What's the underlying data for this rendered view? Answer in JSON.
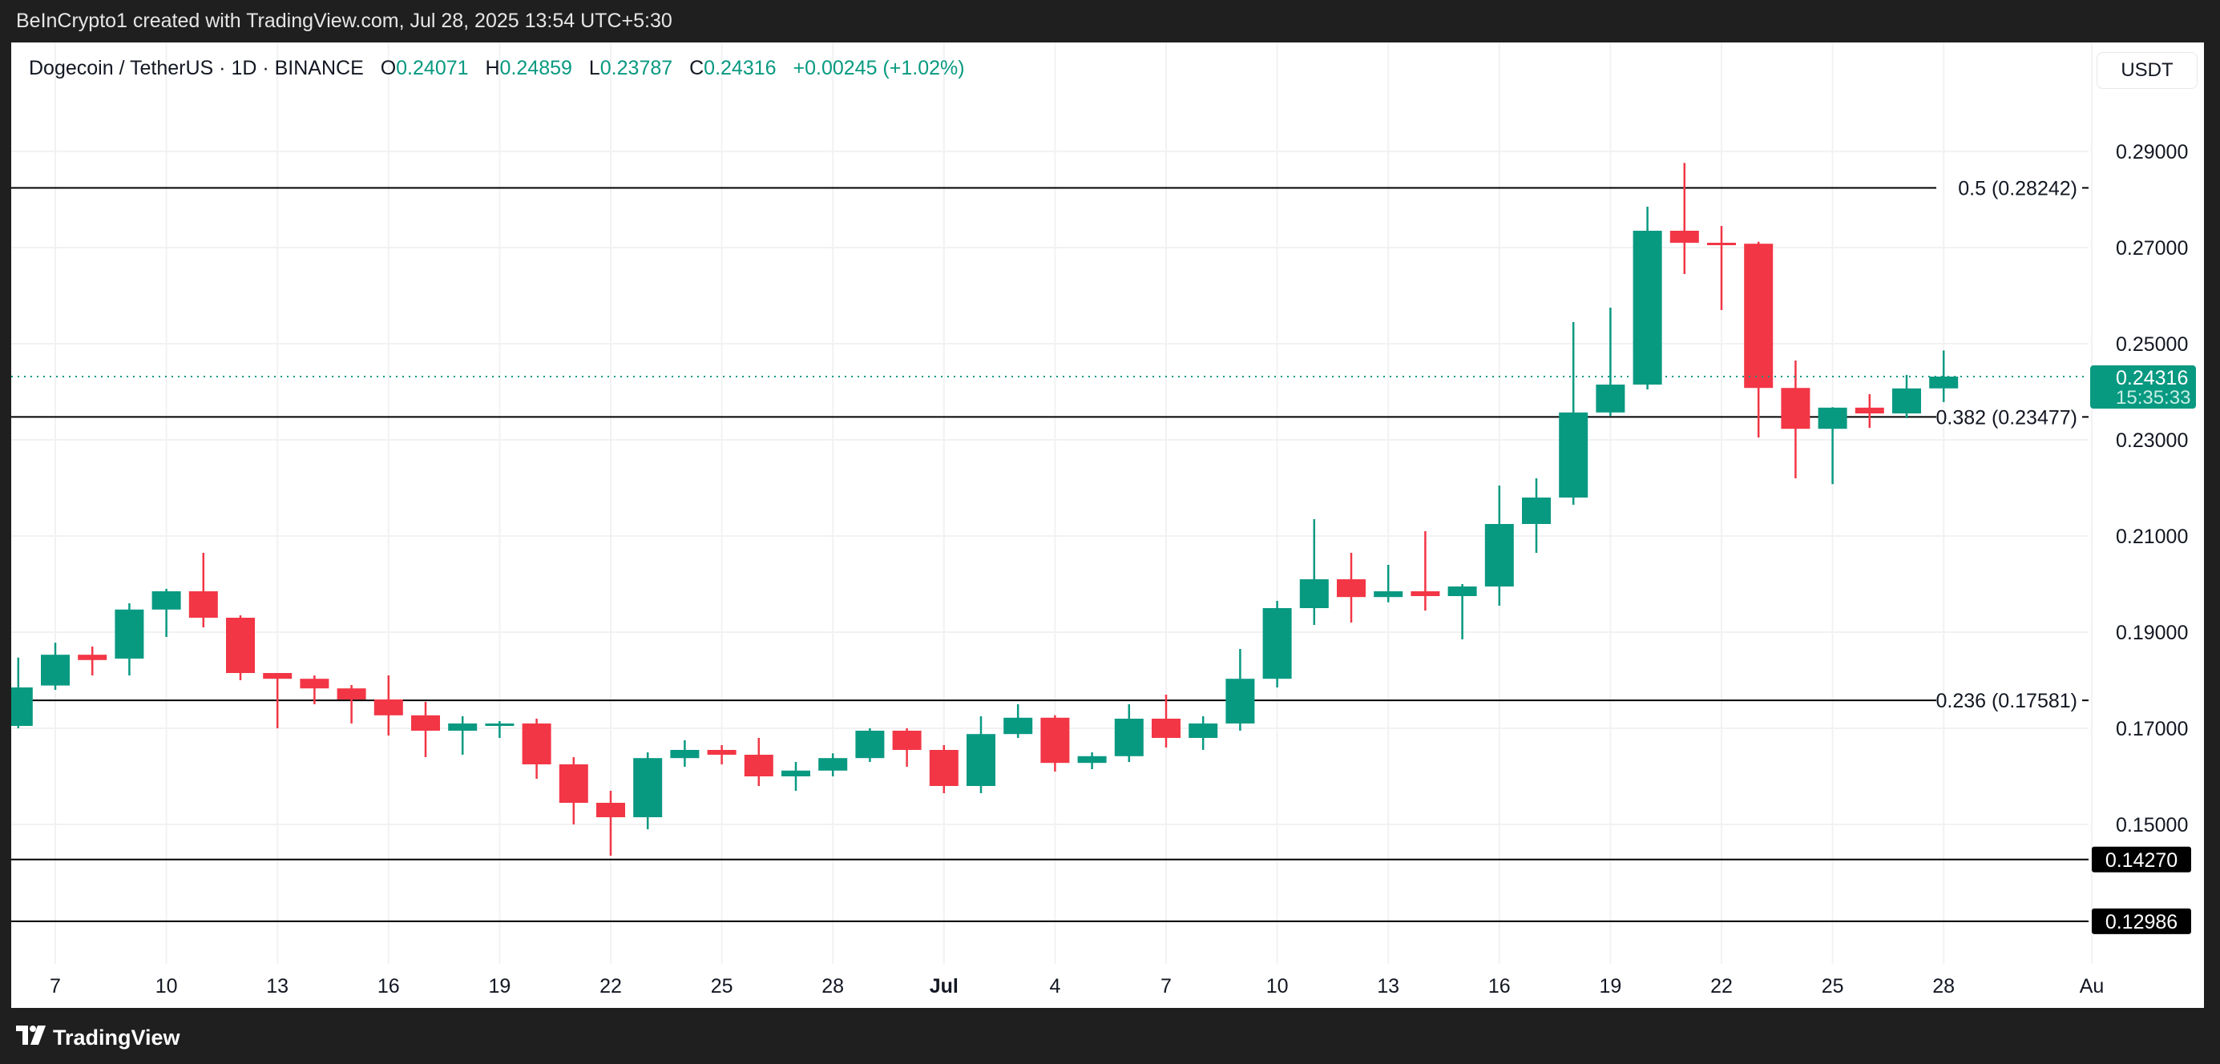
{
  "header": {
    "caption": "BeInCrypto1 created with TradingView.com, Jul 28, 2025 13:54 UTC+5:30"
  },
  "legend": {
    "symbol": "Dogecoin / TetherUS · 1D · BINANCE",
    "o_label": "O",
    "o": "0.24071",
    "h_label": "H",
    "h": "0.24859",
    "l_label": "L",
    "l": "0.23787",
    "c_label": "C",
    "c": "0.24316",
    "change": "+0.00245 (+1.02%)"
  },
  "currency_button": "USDT",
  "footer": {
    "brand": "TradingView"
  },
  "colors": {
    "up": "#089981",
    "down": "#f23645",
    "line": "#000000"
  },
  "chart_data": {
    "type": "candlestick",
    "ylim": [
      0.12,
      0.305
    ],
    "y_ticks": [
      "0.29000",
      "0.27000",
      "0.25000",
      "0.23000",
      "0.21000",
      "0.19000",
      "0.17000",
      "0.15000"
    ],
    "x_ticks": [
      {
        "label": "7",
        "date": "Jun 7"
      },
      {
        "label": "10",
        "date": "Jun 10"
      },
      {
        "label": "13",
        "date": "Jun 13"
      },
      {
        "label": "16",
        "date": "Jun 16"
      },
      {
        "label": "19",
        "date": "Jun 19"
      },
      {
        "label": "22",
        "date": "Jun 22"
      },
      {
        "label": "25",
        "date": "Jun 25"
      },
      {
        "label": "28",
        "date": "Jun 28"
      },
      {
        "label": "Jul",
        "date": "Jul 1"
      },
      {
        "label": "4",
        "date": "Jul 4"
      },
      {
        "label": "7",
        "date": "Jul 7"
      },
      {
        "label": "10",
        "date": "Jul 10"
      },
      {
        "label": "13",
        "date": "Jul 13"
      },
      {
        "label": "16",
        "date": "Jul 16"
      },
      {
        "label": "19",
        "date": "Jul 19"
      },
      {
        "label": "22",
        "date": "Jul 22"
      },
      {
        "label": "25",
        "date": "Jul 25"
      },
      {
        "label": "28",
        "date": "Jul 28"
      },
      {
        "label": "Au",
        "date": "Aug 1"
      }
    ],
    "candles": [
      [
        "Jun 6",
        0.1705,
        0.1847,
        0.17,
        0.1785
      ],
      [
        "Jun 7",
        0.1789,
        0.1878,
        0.178,
        0.1853
      ],
      [
        "Jun 8",
        0.1853,
        0.187,
        0.181,
        0.1842
      ],
      [
        "Jun 9",
        0.1845,
        0.196,
        0.181,
        0.1947
      ],
      [
        "Jun 10",
        0.1947,
        0.199,
        0.189,
        0.1985
      ],
      [
        "Jun 11",
        0.1985,
        0.2065,
        0.191,
        0.193
      ],
      [
        "Jun 12",
        0.193,
        0.1935,
        0.18,
        0.1815
      ],
      [
        "Jun 13",
        0.1815,
        0.181,
        0.17,
        0.1803
      ],
      [
        "Jun 14",
        0.1803,
        0.181,
        0.175,
        0.1783
      ],
      [
        "Jun 15",
        0.1783,
        0.179,
        0.171,
        0.176
      ],
      [
        "Jun 16",
        0.176,
        0.181,
        0.1685,
        0.1727
      ],
      [
        "Jun 17",
        0.1727,
        0.1755,
        0.164,
        0.1695
      ],
      [
        "Jun 18",
        0.1695,
        0.1725,
        0.1645,
        0.171
      ],
      [
        "Jun 19",
        0.1705,
        0.1715,
        0.168,
        0.171
      ],
      [
        "Jun 20",
        0.171,
        0.172,
        0.1595,
        0.1625
      ],
      [
        "Jun 21",
        0.1625,
        0.164,
        0.15,
        0.1545
      ],
      [
        "Jun 22",
        0.1545,
        0.157,
        0.1435,
        0.1515
      ],
      [
        "Jun 23",
        0.1515,
        0.165,
        0.149,
        0.1638
      ],
      [
        "Jun 24",
        0.1638,
        0.1675,
        0.162,
        0.1655
      ],
      [
        "Jun 25",
        0.1655,
        0.1665,
        0.1625,
        0.1645
      ],
      [
        "Jun 26",
        0.1645,
        0.168,
        0.158,
        0.16
      ],
      [
        "Jun 27",
        0.16,
        0.163,
        0.157,
        0.1612
      ],
      [
        "Jun 28",
        0.1612,
        0.1648,
        0.16,
        0.1638
      ],
      [
        "Jun 29",
        0.1638,
        0.17,
        0.163,
        0.1695
      ],
      [
        "Jun 30",
        0.1695,
        0.17,
        0.162,
        0.1655
      ],
      [
        "Jul 1",
        0.1655,
        0.1665,
        0.1565,
        0.158
      ],
      [
        "Jul 2",
        0.158,
        0.1725,
        0.1565,
        0.1688
      ],
      [
        "Jul 3",
        0.1688,
        0.175,
        0.168,
        0.1722
      ],
      [
        "Jul 4",
        0.1722,
        0.1727,
        0.161,
        0.1628
      ],
      [
        "Jul 5",
        0.1628,
        0.165,
        0.1615,
        0.1642
      ],
      [
        "Jul 6",
        0.1642,
        0.175,
        0.163,
        0.172
      ],
      [
        "Jul 7",
        0.172,
        0.177,
        0.166,
        0.168
      ],
      [
        "Jul 8",
        0.168,
        0.1725,
        0.1655,
        0.171
      ],
      [
        "Jul 9",
        0.171,
        0.1865,
        0.1695,
        0.1803
      ],
      [
        "Jul 10",
        0.1803,
        0.1965,
        0.1785,
        0.195
      ],
      [
        "Jul 11",
        0.195,
        0.2135,
        0.1915,
        0.201
      ],
      [
        "Jul 12",
        0.201,
        0.2065,
        0.192,
        0.1973
      ],
      [
        "Jul 13",
        0.1973,
        0.204,
        0.1962,
        0.1985
      ],
      [
        "Jul 14",
        0.1985,
        0.211,
        0.1945,
        0.1975
      ],
      [
        "Jul 15",
        0.1975,
        0.2,
        0.1885,
        0.1995
      ],
      [
        "Jul 16",
        0.1995,
        0.2205,
        0.1955,
        0.2125
      ],
      [
        "Jul 17",
        0.2125,
        0.222,
        0.2065,
        0.218
      ],
      [
        "Jul 18",
        0.218,
        0.2545,
        0.2165,
        0.2357
      ],
      [
        "Jul 19",
        0.2357,
        0.2575,
        0.235,
        0.2415
      ],
      [
        "Jul 20",
        0.2415,
        0.2785,
        0.2405,
        0.2735
      ],
      [
        "Jul 21",
        0.2735,
        0.2876,
        0.2645,
        0.271
      ],
      [
        "Jul 22",
        0.271,
        0.2745,
        0.257,
        0.2707
      ],
      [
        "Jul 23",
        0.2708,
        0.2712,
        0.2305,
        0.2408
      ],
      [
        "Jul 24",
        0.2408,
        0.2465,
        0.222,
        0.2323
      ],
      [
        "Jul 25",
        0.2323,
        0.2368,
        0.2208,
        0.2367
      ],
      [
        "Jul 26",
        0.2367,
        0.2395,
        0.2325,
        0.2355
      ],
      [
        "Jul 27",
        0.2355,
        0.2435,
        0.2345,
        0.2407
      ],
      [
        "Jul 28",
        0.24071,
        0.24859,
        0.23787,
        0.24316
      ]
    ],
    "levels": [
      {
        "price": 0.28242,
        "label": "0.5 (0.28242)",
        "style": "fib"
      },
      {
        "price": 0.23477,
        "label": "0.382 (0.23477)",
        "style": "fib"
      },
      {
        "price": 0.17581,
        "label": "0.236 (0.17581)",
        "style": "fib"
      },
      {
        "price": 0.1427,
        "label": "0.14270",
        "style": "tag"
      },
      {
        "price": 0.12986,
        "label": "0.12986",
        "style": "tag"
      }
    ],
    "last_price": {
      "value": "0.24316",
      "countdown": "15:35:33",
      "price": 0.24316
    }
  }
}
